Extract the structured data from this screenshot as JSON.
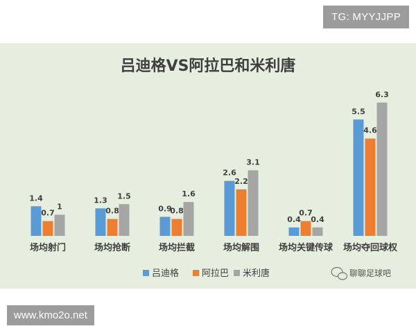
{
  "badges": {
    "top_right": "TG: MYYJJPP",
    "bottom_left": "www.kmo2o.net"
  },
  "watermark": "聊聊足球吧",
  "colors": {
    "panel_bg": "#e6efdf",
    "series": [
      "#5b9bd5",
      "#ed7d31",
      "#a5a5a5"
    ]
  },
  "chart_data": {
    "type": "bar",
    "title": "吕迪格VS阿拉巴和米利唐",
    "xlabel": "",
    "ylabel": "",
    "categories": [
      "场均射门",
      "场均抢断",
      "场均拦截",
      "场均解围",
      "场均关键传球",
      "场均夺回球权"
    ],
    "series": [
      {
        "name": "吕迪格",
        "values": [
          1.4,
          1.3,
          0.9,
          2.6,
          0.4,
          5.5
        ]
      },
      {
        "name": "阿拉巴",
        "values": [
          0.7,
          0.8,
          0.8,
          2.2,
          0.7,
          4.6
        ]
      },
      {
        "name": "米利唐",
        "values": [
          1,
          1.5,
          1.6,
          3.1,
          0.4,
          6.3
        ]
      }
    ],
    "ylim": [
      0,
      7
    ],
    "grid": false,
    "legend": "bottom-center",
    "data_labels": true
  }
}
